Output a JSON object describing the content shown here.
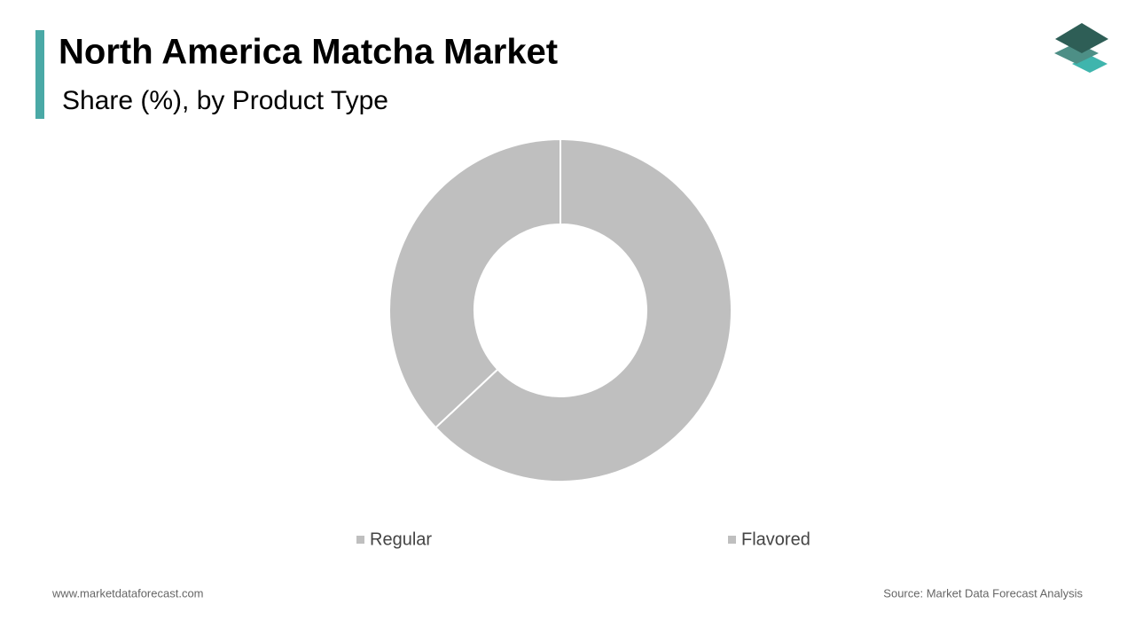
{
  "chart_data": {
    "type": "pie",
    "donut": true,
    "title": "North America Matcha Market",
    "subtitle": "Share (%), by Product Type",
    "categories": [
      "Regular",
      "Flavored"
    ],
    "values": [
      63,
      37
    ],
    "colors": [
      "#bfbfbf",
      "#bfbfbf"
    ]
  },
  "footer": {
    "website": "www.marketdataforecast.com",
    "source": "Source: Market Data Forecast Analysis"
  }
}
